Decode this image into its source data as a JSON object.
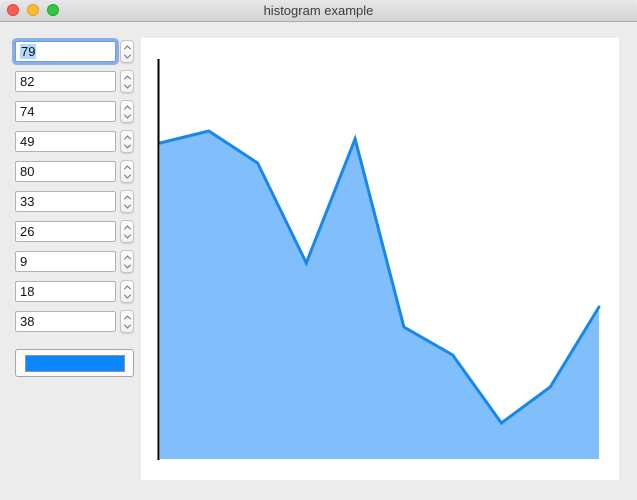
{
  "window": {
    "title": "histogram example",
    "controls": {
      "close": "close-window",
      "minimize": "minimize-window",
      "zoom": "zoom-window"
    }
  },
  "spinners": {
    "focused_index": 0,
    "count": 10
  },
  "color_button": {
    "color": "#0a86ff"
  },
  "chart_data": {
    "type": "area",
    "x": [
      1,
      2,
      3,
      4,
      5,
      6,
      7,
      8,
      9,
      10
    ],
    "values": [
      79,
      82,
      74,
      49,
      80,
      33,
      26,
      9,
      18,
      38
    ],
    "title": "",
    "xlabel": "",
    "ylabel": "",
    "ylim": [
      0,
      100
    ],
    "grid": false,
    "legend": false,
    "fill_color": "#80bffb",
    "line_color": "#1787ec",
    "axis_color": "#000000"
  }
}
